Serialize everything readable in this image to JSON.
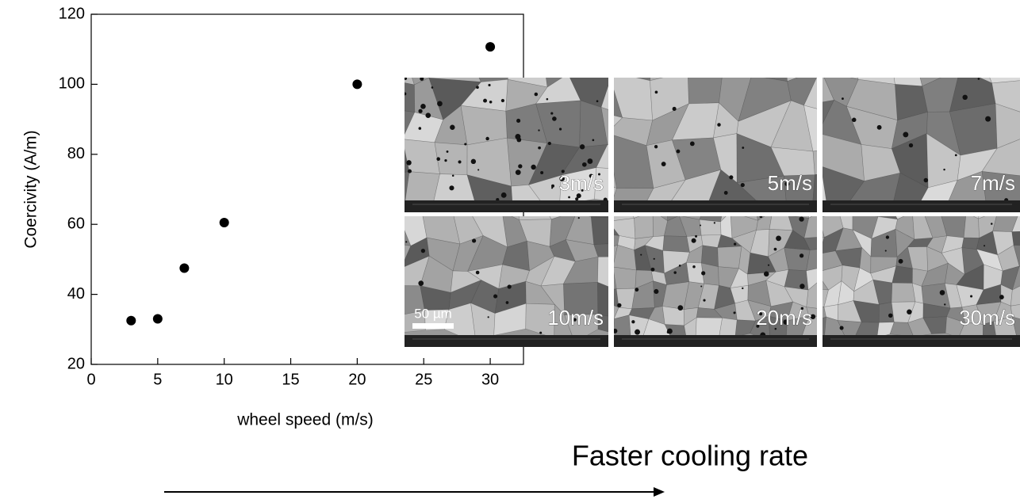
{
  "chart_data": {
    "type": "scatter",
    "x_label": "wheel speed (m/s)",
    "y_label": "Coercivity (A/m)",
    "x": [
      3,
      5,
      7,
      10,
      20,
      30
    ],
    "values": [
      32.5,
      33,
      47.5,
      60.5,
      100,
      110.7
    ],
    "color": "#000000",
    "xlim": [
      0,
      32.5
    ],
    "xticks": [
      0,
      5,
      10,
      15,
      20,
      25,
      30
    ],
    "ylim": [
      20,
      120
    ],
    "yticks": [
      20,
      40,
      60,
      80,
      100,
      120
    ],
    "annotation": "Faster cooling rate"
  },
  "micrographs": [
    "3m/s",
    "5m/s",
    "7m/s",
    "10m/s",
    "20m/s",
    "30m/s"
  ],
  "scale_bar": "50 µm"
}
